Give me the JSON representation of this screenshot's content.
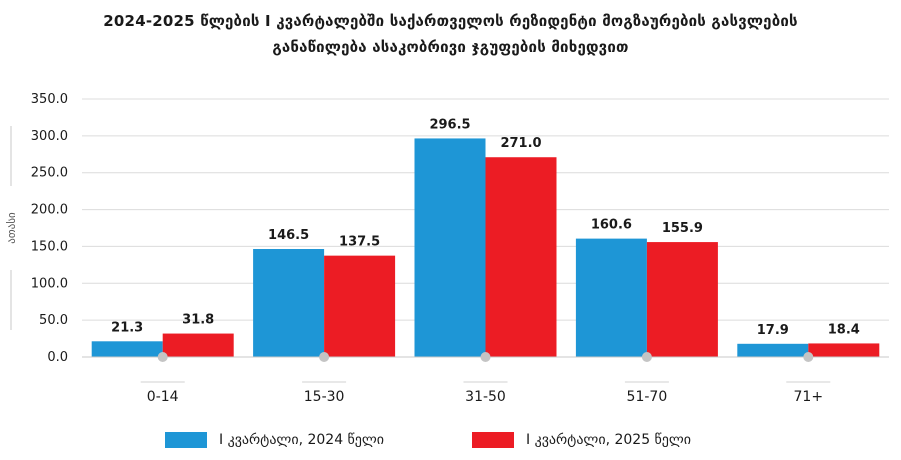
{
  "title": {
    "line1": "2024-2025 წლების I კვარტალებში საქართველოს რეზიდენტი მოგზაურების გასვლების",
    "line2": "განაწილება ასაკობრივი ჯგუფების მიხედვით"
  },
  "chart_data": {
    "type": "bar",
    "title": "2024-2025 წლების I კვარტალებში საქართველოს რეზიდენტი მოგზაურების გასვლების განაწილება ასაკობრივი ჯგუფების მიხედვით",
    "categories": [
      "0-14",
      "15-30",
      "31-50",
      "51-70",
      "71+"
    ],
    "series": [
      {
        "name": "I კვარტალი, 2024 წელი",
        "color": "#1e96d6",
        "values": [
          21.3,
          146.5,
          296.5,
          160.6,
          17.9
        ]
      },
      {
        "name": "I კვარტალი, 2025 წელი",
        "color": "#ec1c24",
        "values": [
          31.8,
          137.5,
          271.0,
          155.9,
          18.4
        ]
      }
    ],
    "ylabel": "ათასი",
    "ylim": [
      0,
      350
    ],
    "yticks": [
      "0.0",
      "50.0",
      "100.0",
      "150.0",
      "200.0",
      "250.0",
      "300.0",
      "350.0"
    ],
    "data_labels": [
      [
        "21.3",
        "146.5",
        "296.5",
        "160.6",
        "17.9"
      ],
      [
        "31.8",
        "137.5",
        "271.0",
        "155.9",
        "18.4"
      ]
    ],
    "grid": true,
    "legend_position": "bottom"
  },
  "legend": {
    "items": [
      {
        "label": "I კვარტალი, 2024 წელი",
        "color": "#1e96d6"
      },
      {
        "label": "I კვარტალი, 2025 წელი",
        "color": "#ec1c24"
      }
    ]
  }
}
